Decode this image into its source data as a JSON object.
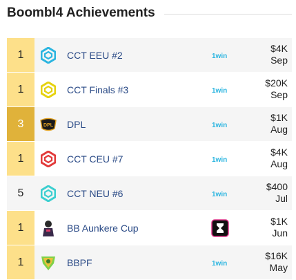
{
  "title": "Boombl4 Achievements",
  "colors": {
    "first": "#fde08a",
    "third": "#e0b23a",
    "link": "#2a4a86"
  },
  "rows": [
    {
      "place": "1",
      "tier": "first",
      "logo": "cct-icon-cyan",
      "event": "CCT EEU #2",
      "source": "1win-icon",
      "prize": "$4K",
      "month": "Sep"
    },
    {
      "place": "1",
      "tier": "first",
      "logo": "cct-icon-yellow",
      "event": "CCT Finals #3",
      "source": "1win-icon",
      "prize": "$20K",
      "month": "Sep"
    },
    {
      "place": "3",
      "tier": "third",
      "logo": "dpl-icon",
      "event": "DPL",
      "source": "1win-icon",
      "prize": "$1K",
      "month": "Aug"
    },
    {
      "place": "1",
      "tier": "first",
      "logo": "cct-icon-red",
      "event": "CCT CEU #7",
      "source": "1win-icon",
      "prize": "$4K",
      "month": "Aug"
    },
    {
      "place": "5",
      "tier": "other",
      "logo": "cct-icon-teal",
      "event": "CCT NEU #6",
      "source": "1win-icon",
      "prize": "$400",
      "month": "Jul"
    },
    {
      "place": "1",
      "tier": "first",
      "logo": "aunkere-icon",
      "event": "BB Aunkere Cup",
      "source": "bb-icon",
      "prize": "$1K",
      "month": "Jun"
    },
    {
      "place": "1",
      "tier": "first",
      "logo": "bbpf-icon",
      "event": "BBPF",
      "source": "1win-icon",
      "prize": "$16K",
      "month": "May"
    }
  ]
}
